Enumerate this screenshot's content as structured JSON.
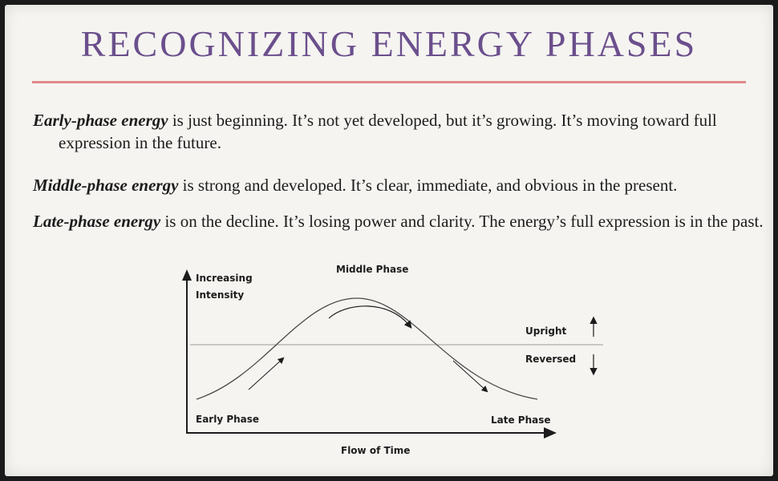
{
  "title": "RECOGNIZING ENERGY PHASES",
  "paragraphs": [
    {
      "term": "Early-phase energy",
      "text": " is just beginning. It’s not yet developed, but it’s growing. It’s moving toward full expression in the future."
    },
    {
      "term": "Middle-phase energy",
      "text": " is strong and developed. It’s clear, immediate, and obvious in the present."
    },
    {
      "term": "Late-phase energy",
      "text": " is on the decline. It’s losing power and clarity. The energy’s full expression is in the past."
    }
  ],
  "diagram": {
    "y_axis_label_line1": "Increasing",
    "y_axis_label_line2": "Intensity",
    "x_axis_label": "Flow of Time",
    "middle_phase": "Middle Phase",
    "early_phase": "Early Phase",
    "late_phase": "Late Phase",
    "upright": "Upright",
    "reversed": "Reversed"
  },
  "colors": {
    "title": "#6b4f8c",
    "rule": "#e08a8a",
    "text": "#1c1c1c"
  }
}
